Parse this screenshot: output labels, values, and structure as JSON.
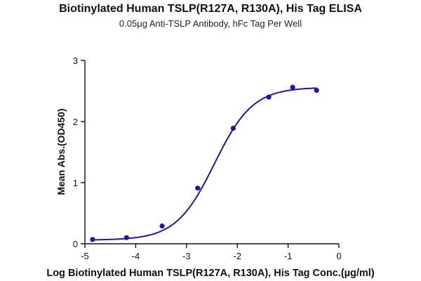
{
  "chart_data": {
    "type": "scatter",
    "title": "Biotinylated Human TSLP(R127A, R130A), His Tag ELISA",
    "subtitle": "0.05µg Anti-TSLP Antibody, hFc Tag Per Well",
    "xlabel": "Log Biotinylated Human TSLP(R127A, R130A), His Tag Conc.(µg/ml)",
    "ylabel": "Mean Abs.(OD450)",
    "xlim": [
      -5,
      0
    ],
    "ylim": [
      0,
      3
    ],
    "x_ticks": [
      -5,
      -4,
      -3,
      -2,
      -1,
      0
    ],
    "y_ticks": [
      0,
      1,
      2,
      3
    ],
    "grid": false,
    "point_color": "#1a1aa6",
    "line_color": "#1a1aa6",
    "series": [
      {
        "points": [
          {
            "x": -4.85,
            "y": 0.07
          },
          {
            "x": -4.18,
            "y": 0.1
          },
          {
            "x": -3.48,
            "y": 0.29
          },
          {
            "x": -2.78,
            "y": 0.91
          },
          {
            "x": -2.08,
            "y": 1.89
          },
          {
            "x": -1.38,
            "y": 2.4
          },
          {
            "x": -0.91,
            "y": 2.56
          },
          {
            "x": -0.44,
            "y": 2.51
          }
        ],
        "fit": {
          "bottom": 0.06,
          "top": 2.56,
          "logEC50": -2.45,
          "hill": 1.15,
          "x_range": [
            -4.85,
            -0.44
          ]
        }
      }
    ]
  }
}
